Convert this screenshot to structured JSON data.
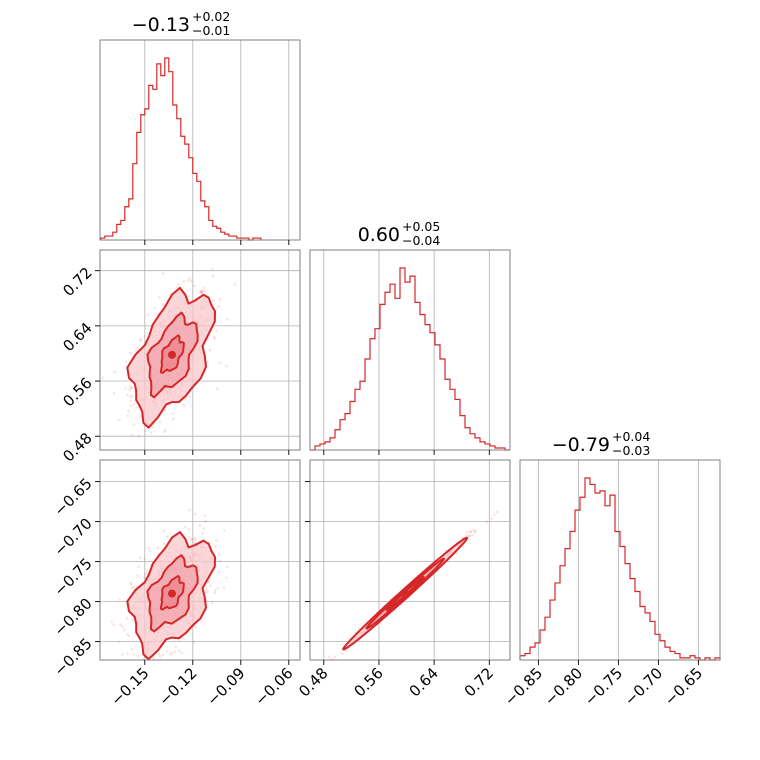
{
  "colors": {
    "series": "#d62728",
    "fill_light": "#f8c8cc",
    "fill_mid": "#eb8a92",
    "frame": "#808080",
    "grid": "#b0b0b0"
  },
  "chart_data": {
    "type": "corner",
    "parameters": [
      {
        "title": {
          "value": "−0.13",
          "upper": "+0.02",
          "lower": "−0.01"
        },
        "median": -0.13,
        "err_plus": 0.02,
        "err_minus": 0.01,
        "range": [
          -0.178,
          -0.053
        ],
        "ticks": [
          -0.15,
          -0.12,
          -0.09,
          -0.06
        ],
        "tick_labels": [
          "−0.15",
          "−0.12",
          "−0.09",
          "−0.06"
        ],
        "hist": {
          "bin_start": -0.1775,
          "bin_width": 0.0025,
          "counts": [
            1,
            2,
            2,
            4,
            8,
            10,
            17,
            21,
            39,
            55,
            64,
            67,
            79,
            77,
            90,
            84,
            93,
            86,
            69,
            62,
            53,
            49,
            42,
            34,
            30,
            20,
            17,
            10,
            7,
            6,
            4,
            3,
            2,
            2,
            1,
            1,
            1,
            0,
            1,
            1
          ]
        }
      },
      {
        "title": {
          "value": "0.60",
          "upper": "+0.05",
          "lower": "−0.04"
        },
        "median": 0.6,
        "err_plus": 0.05,
        "err_minus": 0.04,
        "range": [
          0.46,
          0.75
        ],
        "ticks": [
          0.48,
          0.56,
          0.64,
          0.72
        ],
        "tick_labels": [
          "0.48",
          "0.56",
          "0.64",
          "0.72"
        ],
        "hist": {
          "bin_start": 0.46,
          "bin_width": 0.00725,
          "counts": [
            0,
            2,
            3,
            4,
            6,
            10,
            15,
            18,
            24,
            30,
            34,
            45,
            55,
            60,
            72,
            78,
            82,
            75,
            90,
            83,
            86,
            73,
            67,
            62,
            58,
            52,
            45,
            35,
            30,
            25,
            17,
            11,
            8,
            6,
            4,
            3,
            2,
            1,
            1,
            0
          ]
        }
      },
      {
        "title": {
          "value": "−0.79",
          "upper": "+0.04",
          "lower": "−0.03"
        },
        "median": -0.79,
        "err_plus": 0.04,
        "err_minus": 0.03,
        "range": [
          -0.873,
          -0.623
        ],
        "ticks": [
          -0.85,
          -0.8,
          -0.75,
          -0.7,
          -0.65
        ],
        "tick_labels": [
          "−0.85",
          "−0.80",
          "−0.75",
          "−0.70",
          "−0.65"
        ],
        "hist": {
          "bin_start": -0.873,
          "bin_width": 0.00625,
          "counts": [
            2,
            3,
            6,
            8,
            14,
            20,
            28,
            36,
            44,
            52,
            60,
            70,
            76,
            85,
            82,
            78,
            79,
            72,
            77,
            60,
            53,
            45,
            38,
            32,
            25,
            22,
            18,
            12,
            9,
            6,
            4,
            3,
            1,
            1,
            2,
            1,
            0,
            1,
            0,
            1
          ]
        }
      }
    ],
    "pairs": [
      {
        "x_param": 0,
        "y_param": 1,
        "center": [
          -0.133,
          0.598
        ],
        "sx": 0.0125,
        "sy": 0.045,
        "rho": 0.5
      },
      {
        "x_param": 0,
        "y_param": 2,
        "center": [
          -0.133,
          -0.79
        ],
        "sx": 0.0125,
        "sy": 0.035,
        "rho": 0.45
      },
      {
        "x_param": 1,
        "y_param": 2,
        "center": [
          0.598,
          -0.79
        ],
        "sx": 0.045,
        "sy": 0.035,
        "rho": 0.995
      }
    ],
    "grid": true,
    "legend": "none"
  }
}
